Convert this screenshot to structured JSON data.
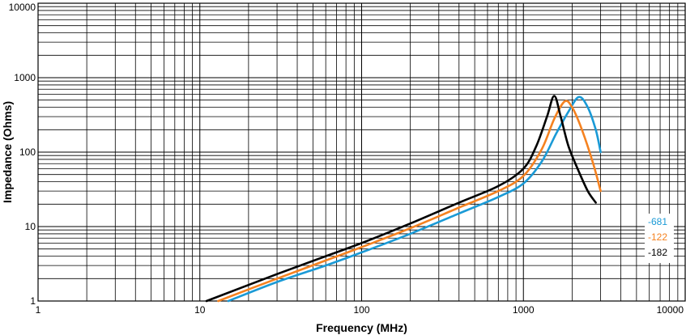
{
  "chart_data": {
    "type": "line",
    "xlabel": "Frequency (MHz)",
    "ylabel": "Impedance (Ohms)",
    "xscale": "log",
    "yscale": "log",
    "xlim": [
      1,
      10000
    ],
    "ylim": [
      1,
      10000
    ],
    "grid": true,
    "x_ticks": [
      "1",
      "10",
      "100",
      "1000",
      "10000"
    ],
    "y_ticks": [
      "1",
      "10",
      "100",
      "1000",
      "10000"
    ],
    "legend_position": "right",
    "series": [
      {
        "name": "-681",
        "color": "#1a9ad6",
        "points": [
          [
            15,
            1
          ],
          [
            30,
            1.8
          ],
          [
            60,
            3
          ],
          [
            100,
            4.5
          ],
          [
            200,
            8
          ],
          [
            400,
            15
          ],
          [
            700,
            25
          ],
          [
            1000,
            38
          ],
          [
            1300,
            75
          ],
          [
            1600,
            180
          ],
          [
            1900,
            350
          ],
          [
            2200,
            550
          ],
          [
            2500,
            400
          ],
          [
            2800,
            200
          ],
          [
            3000,
            100
          ]
        ]
      },
      {
        "name": "-122",
        "color": "#f58220",
        "points": [
          [
            13,
            1
          ],
          [
            30,
            2
          ],
          [
            60,
            3.5
          ],
          [
            100,
            5.3
          ],
          [
            200,
            9.5
          ],
          [
            400,
            18
          ],
          [
            700,
            30
          ],
          [
            1000,
            48
          ],
          [
            1300,
            110
          ],
          [
            1550,
            280
          ],
          [
            1800,
            480
          ],
          [
            2000,
            400
          ],
          [
            2300,
            200
          ],
          [
            2700,
            70
          ],
          [
            3000,
            30
          ]
        ]
      },
      {
        "name": "-182",
        "color": "#000000",
        "points": [
          [
            11,
            1
          ],
          [
            30,
            2.3
          ],
          [
            60,
            4
          ],
          [
            100,
            6
          ],
          [
            200,
            11
          ],
          [
            400,
            21
          ],
          [
            700,
            35
          ],
          [
            1000,
            60
          ],
          [
            1200,
            120
          ],
          [
            1400,
            300
          ],
          [
            1550,
            570
          ],
          [
            1700,
            300
          ],
          [
            1900,
            120
          ],
          [
            2200,
            55
          ],
          [
            2500,
            30
          ],
          [
            2800,
            21
          ]
        ]
      }
    ]
  }
}
